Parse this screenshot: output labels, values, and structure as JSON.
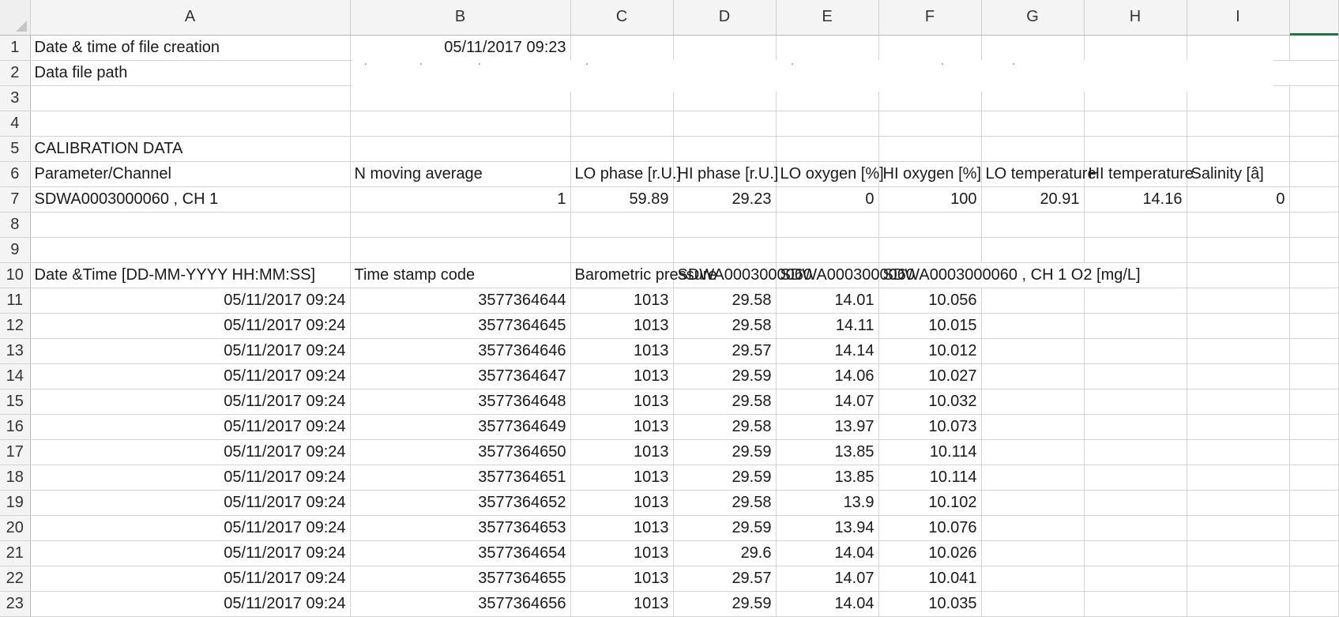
{
  "column_headers": [
    "A",
    "B",
    "C",
    "D",
    "E",
    "F",
    "G",
    "H",
    "I",
    ""
  ],
  "rows": [
    {
      "n": "1",
      "cells": [
        "Date & time of file creation",
        "05/11/2017 09:23",
        "",
        "",
        "",
        "",
        "",
        "",
        "",
        ""
      ]
    },
    {
      "n": "2",
      "cells": [
        "Data file path",
        "",
        "",
        "",
        "",
        "",
        "",
        "",
        "",
        ""
      ]
    },
    {
      "n": "3",
      "cells": [
        "",
        "",
        "",
        "",
        "",
        "",
        "",
        "",
        "",
        ""
      ]
    },
    {
      "n": "4",
      "cells": [
        "",
        "",
        "",
        "",
        "",
        "",
        "",
        "",
        "",
        ""
      ]
    },
    {
      "n": "5",
      "cells": [
        "CALIBRATION DATA",
        "",
        "",
        "",
        "",
        "",
        "",
        "",
        "",
        ""
      ]
    },
    {
      "n": "6",
      "cells": [
        "Parameter/Channel",
        "N moving average",
        "LO phase [r.U.]",
        "HI phase [r.U.]",
        "LO oxygen [%]",
        "HI oxygen [%]",
        "LO temperature",
        "HI temperature",
        "Salinity [â]",
        ""
      ]
    },
    {
      "n": "7",
      "cells": [
        "SDWA0003000060      , CH 1",
        "1",
        "59.89",
        "29.23",
        "0",
        "100",
        "20.91",
        "14.16",
        "0",
        ""
      ]
    },
    {
      "n": "8",
      "cells": [
        "",
        "",
        "",
        "",
        "",
        "",
        "",
        "",
        "",
        ""
      ]
    },
    {
      "n": "9",
      "cells": [
        "",
        "",
        "",
        "",
        "",
        "",
        "",
        "",
        "",
        ""
      ]
    },
    {
      "n": "10",
      "cells": [
        "Date &Time [DD-MM-YYYY HH:MM:SS]",
        "Time stamp code",
        "Barometric pressure",
        "SDWA0003000060",
        "SDWA0003000060",
        "SDWA0003000060      , CH 1 O2 [mg/L]",
        "",
        "",
        "",
        ""
      ]
    },
    {
      "n": "11",
      "cells": [
        "05/11/2017 09:24",
        "3577364644",
        "1013",
        "29.58",
        "14.01",
        "10.056",
        "",
        "",
        "",
        ""
      ]
    },
    {
      "n": "12",
      "cells": [
        "05/11/2017 09:24",
        "3577364645",
        "1013",
        "29.58",
        "14.11",
        "10.015",
        "",
        "",
        "",
        ""
      ]
    },
    {
      "n": "13",
      "cells": [
        "05/11/2017 09:24",
        "3577364646",
        "1013",
        "29.57",
        "14.14",
        "10.012",
        "",
        "",
        "",
        ""
      ]
    },
    {
      "n": "14",
      "cells": [
        "05/11/2017 09:24",
        "3577364647",
        "1013",
        "29.59",
        "14.06",
        "10.027",
        "",
        "",
        "",
        ""
      ]
    },
    {
      "n": "15",
      "cells": [
        "05/11/2017 09:24",
        "3577364648",
        "1013",
        "29.58",
        "14.07",
        "10.032",
        "",
        "",
        "",
        ""
      ]
    },
    {
      "n": "16",
      "cells": [
        "05/11/2017 09:24",
        "3577364649",
        "1013",
        "29.58",
        "13.97",
        "10.073",
        "",
        "",
        "",
        ""
      ]
    },
    {
      "n": "17",
      "cells": [
        "05/11/2017 09:24",
        "3577364650",
        "1013",
        "29.59",
        "13.85",
        "10.114",
        "",
        "",
        "",
        ""
      ]
    },
    {
      "n": "18",
      "cells": [
        "05/11/2017 09:24",
        "3577364651",
        "1013",
        "29.59",
        "13.85",
        "10.114",
        "",
        "",
        "",
        ""
      ]
    },
    {
      "n": "19",
      "cells": [
        "05/11/2017 09:24",
        "3577364652",
        "1013",
        "29.58",
        "13.9",
        "10.102",
        "",
        "",
        "",
        ""
      ]
    },
    {
      "n": "20",
      "cells": [
        "05/11/2017 09:24",
        "3577364653",
        "1013",
        "29.59",
        "13.94",
        "10.076",
        "",
        "",
        "",
        ""
      ]
    },
    {
      "n": "21",
      "cells": [
        "05/11/2017 09:24",
        "3577364654",
        "1013",
        "29.6",
        "14.04",
        "10.026",
        "",
        "",
        "",
        ""
      ]
    },
    {
      "n": "22",
      "cells": [
        "05/11/2017 09:24",
        "3577364655",
        "1013",
        "29.57",
        "14.07",
        "10.041",
        "",
        "",
        "",
        ""
      ]
    },
    {
      "n": "23",
      "cells": [
        "05/11/2017 09:24",
        "3577364656",
        "1013",
        "29.59",
        "14.04",
        "10.035",
        "",
        "",
        "",
        ""
      ]
    }
  ],
  "accent_color": "#217346"
}
